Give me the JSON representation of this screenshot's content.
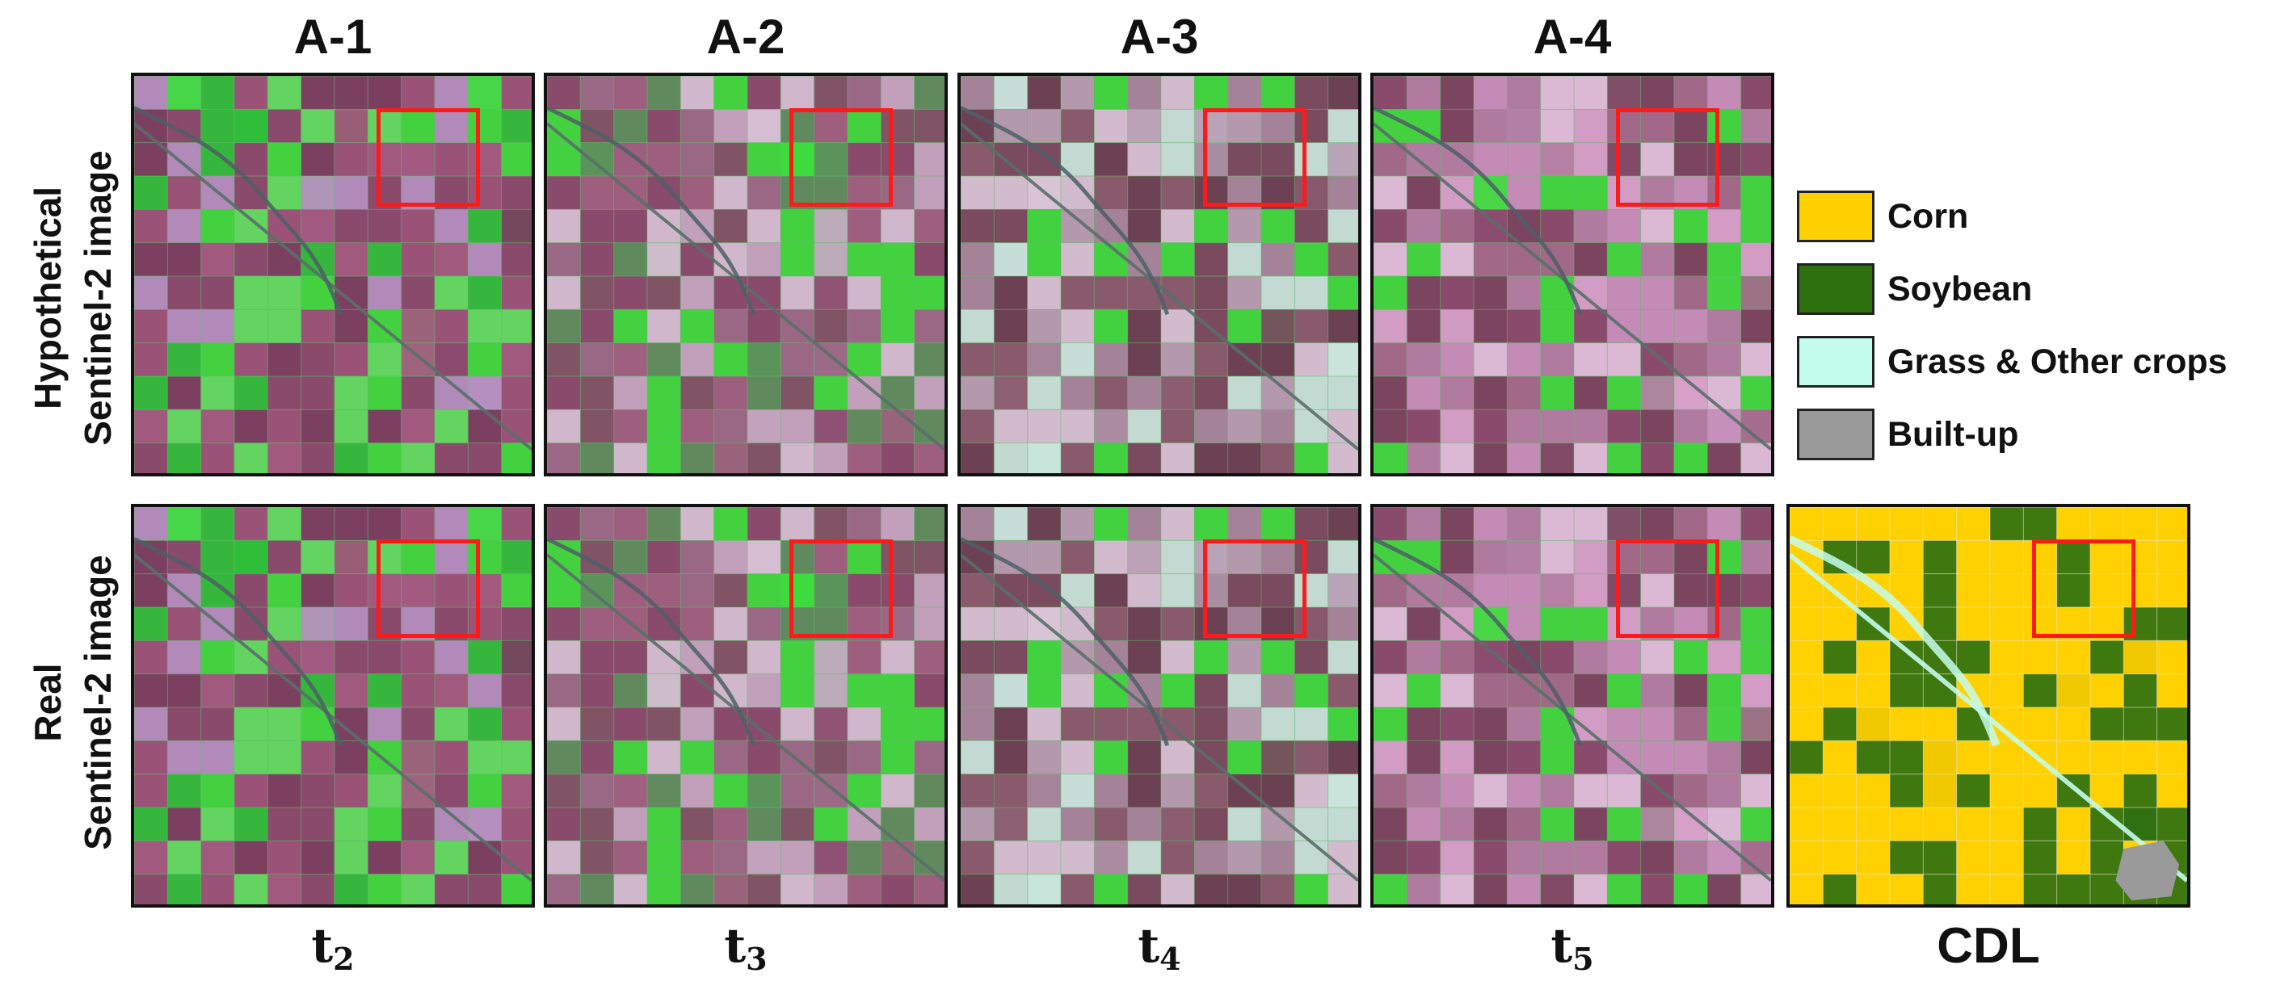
{
  "columns": {
    "headers": [
      "A-1",
      "A-2",
      "A-3",
      "A-4"
    ],
    "time_labels": [
      {
        "base": "t",
        "sub": "2"
      },
      {
        "base": "t",
        "sub": "3"
      },
      {
        "base": "t",
        "sub": "4"
      },
      {
        "base": "t",
        "sub": "5"
      }
    ],
    "cdl_label": "CDL"
  },
  "rows": {
    "top_label_line1": "Hypothetical",
    "top_label_line2": "Sentinel-2 image",
    "bottom_label_line1": "Real",
    "bottom_label_line2": "Sentinel-2 image"
  },
  "legend": [
    {
      "label": "Corn",
      "color": "#ffd000"
    },
    {
      "label": "Soybean",
      "color": "#2e7010"
    },
    {
      "label": "Grass & Other crops",
      "color": "#c4fcec"
    },
    {
      "label": "Built-up",
      "color": "#9a9a9a"
    }
  ],
  "colors": {
    "highlight_box": "#ff1a1a",
    "panel_border": "#111111",
    "false_color_magenta": "#8a4a6c",
    "false_color_pink": "#d9a3cc",
    "false_color_green": "#3ddc3d",
    "false_color_pale": "#cfe8df"
  }
}
